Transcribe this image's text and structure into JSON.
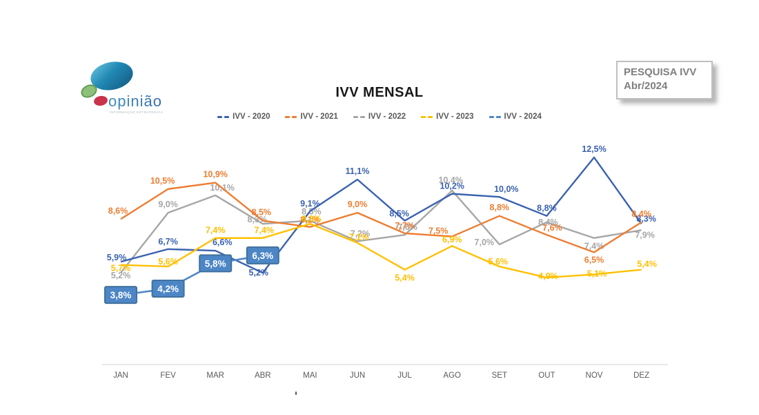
{
  "logo": {
    "name": "opinião",
    "tagline": "INFORMAÇÃO ESTRATÉGICA"
  },
  "title": "IVV MENSAL",
  "badge": {
    "line1": "PESQUISA IVV",
    "line2": "Abr/2024"
  },
  "axis": {
    "label_color": "#595959",
    "line_color": "#D9D9D9"
  },
  "chart_data": {
    "type": "line",
    "title": "IVV MENSAL",
    "categories": [
      "JAN",
      "FEV",
      "MAR",
      "ABR",
      "MAI",
      "JUN",
      "JUL",
      "AGO",
      "SET",
      "OUT",
      "NOV",
      "DEZ"
    ],
    "series": [
      {
        "name": "IVV - 2020",
        "color": "#3A62B0",
        "values": [
          5.9,
          6.7,
          6.6,
          5.2,
          9.1,
          11.1,
          8.5,
          10.2,
          10.0,
          8.8,
          12.5,
          8.3
        ]
      },
      {
        "name": "IVV - 2021",
        "color": "#ED7D31",
        "values": [
          8.6,
          10.5,
          10.9,
          8.5,
          8.1,
          9.0,
          7.7,
          7.5,
          8.8,
          7.6,
          6.5,
          8.4
        ]
      },
      {
        "name": "IVV - 2022",
        "color": "#A6A6A6",
        "values": [
          5.2,
          9.0,
          10.1,
          8.3,
          8.5,
          7.2,
          7.6,
          10.4,
          7.0,
          8.4,
          7.4,
          7.9
        ]
      },
      {
        "name": "IVV - 2023",
        "color": "#FFC000",
        "values": [
          5.7,
          5.6,
          7.4,
          7.4,
          8.3,
          7.1,
          5.4,
          6.9,
          5.6,
          4.9,
          5.1,
          5.4
        ]
      },
      {
        "name": "IVV - 2024",
        "color": "#4E87C7",
        "boxed_labels": true,
        "box_fill": "#4D86C6",
        "box_stroke": "#41719C",
        "values": [
          3.8,
          4.2,
          5.8,
          6.3,
          null,
          null,
          null,
          null,
          null,
          null,
          null,
          null
        ]
      }
    ],
    "label_format": "percent-comma-1dp",
    "legend_position": "top",
    "grid": false,
    "xlabel": "",
    "ylabel": "",
    "ylim": [
      3,
      13.5
    ]
  }
}
